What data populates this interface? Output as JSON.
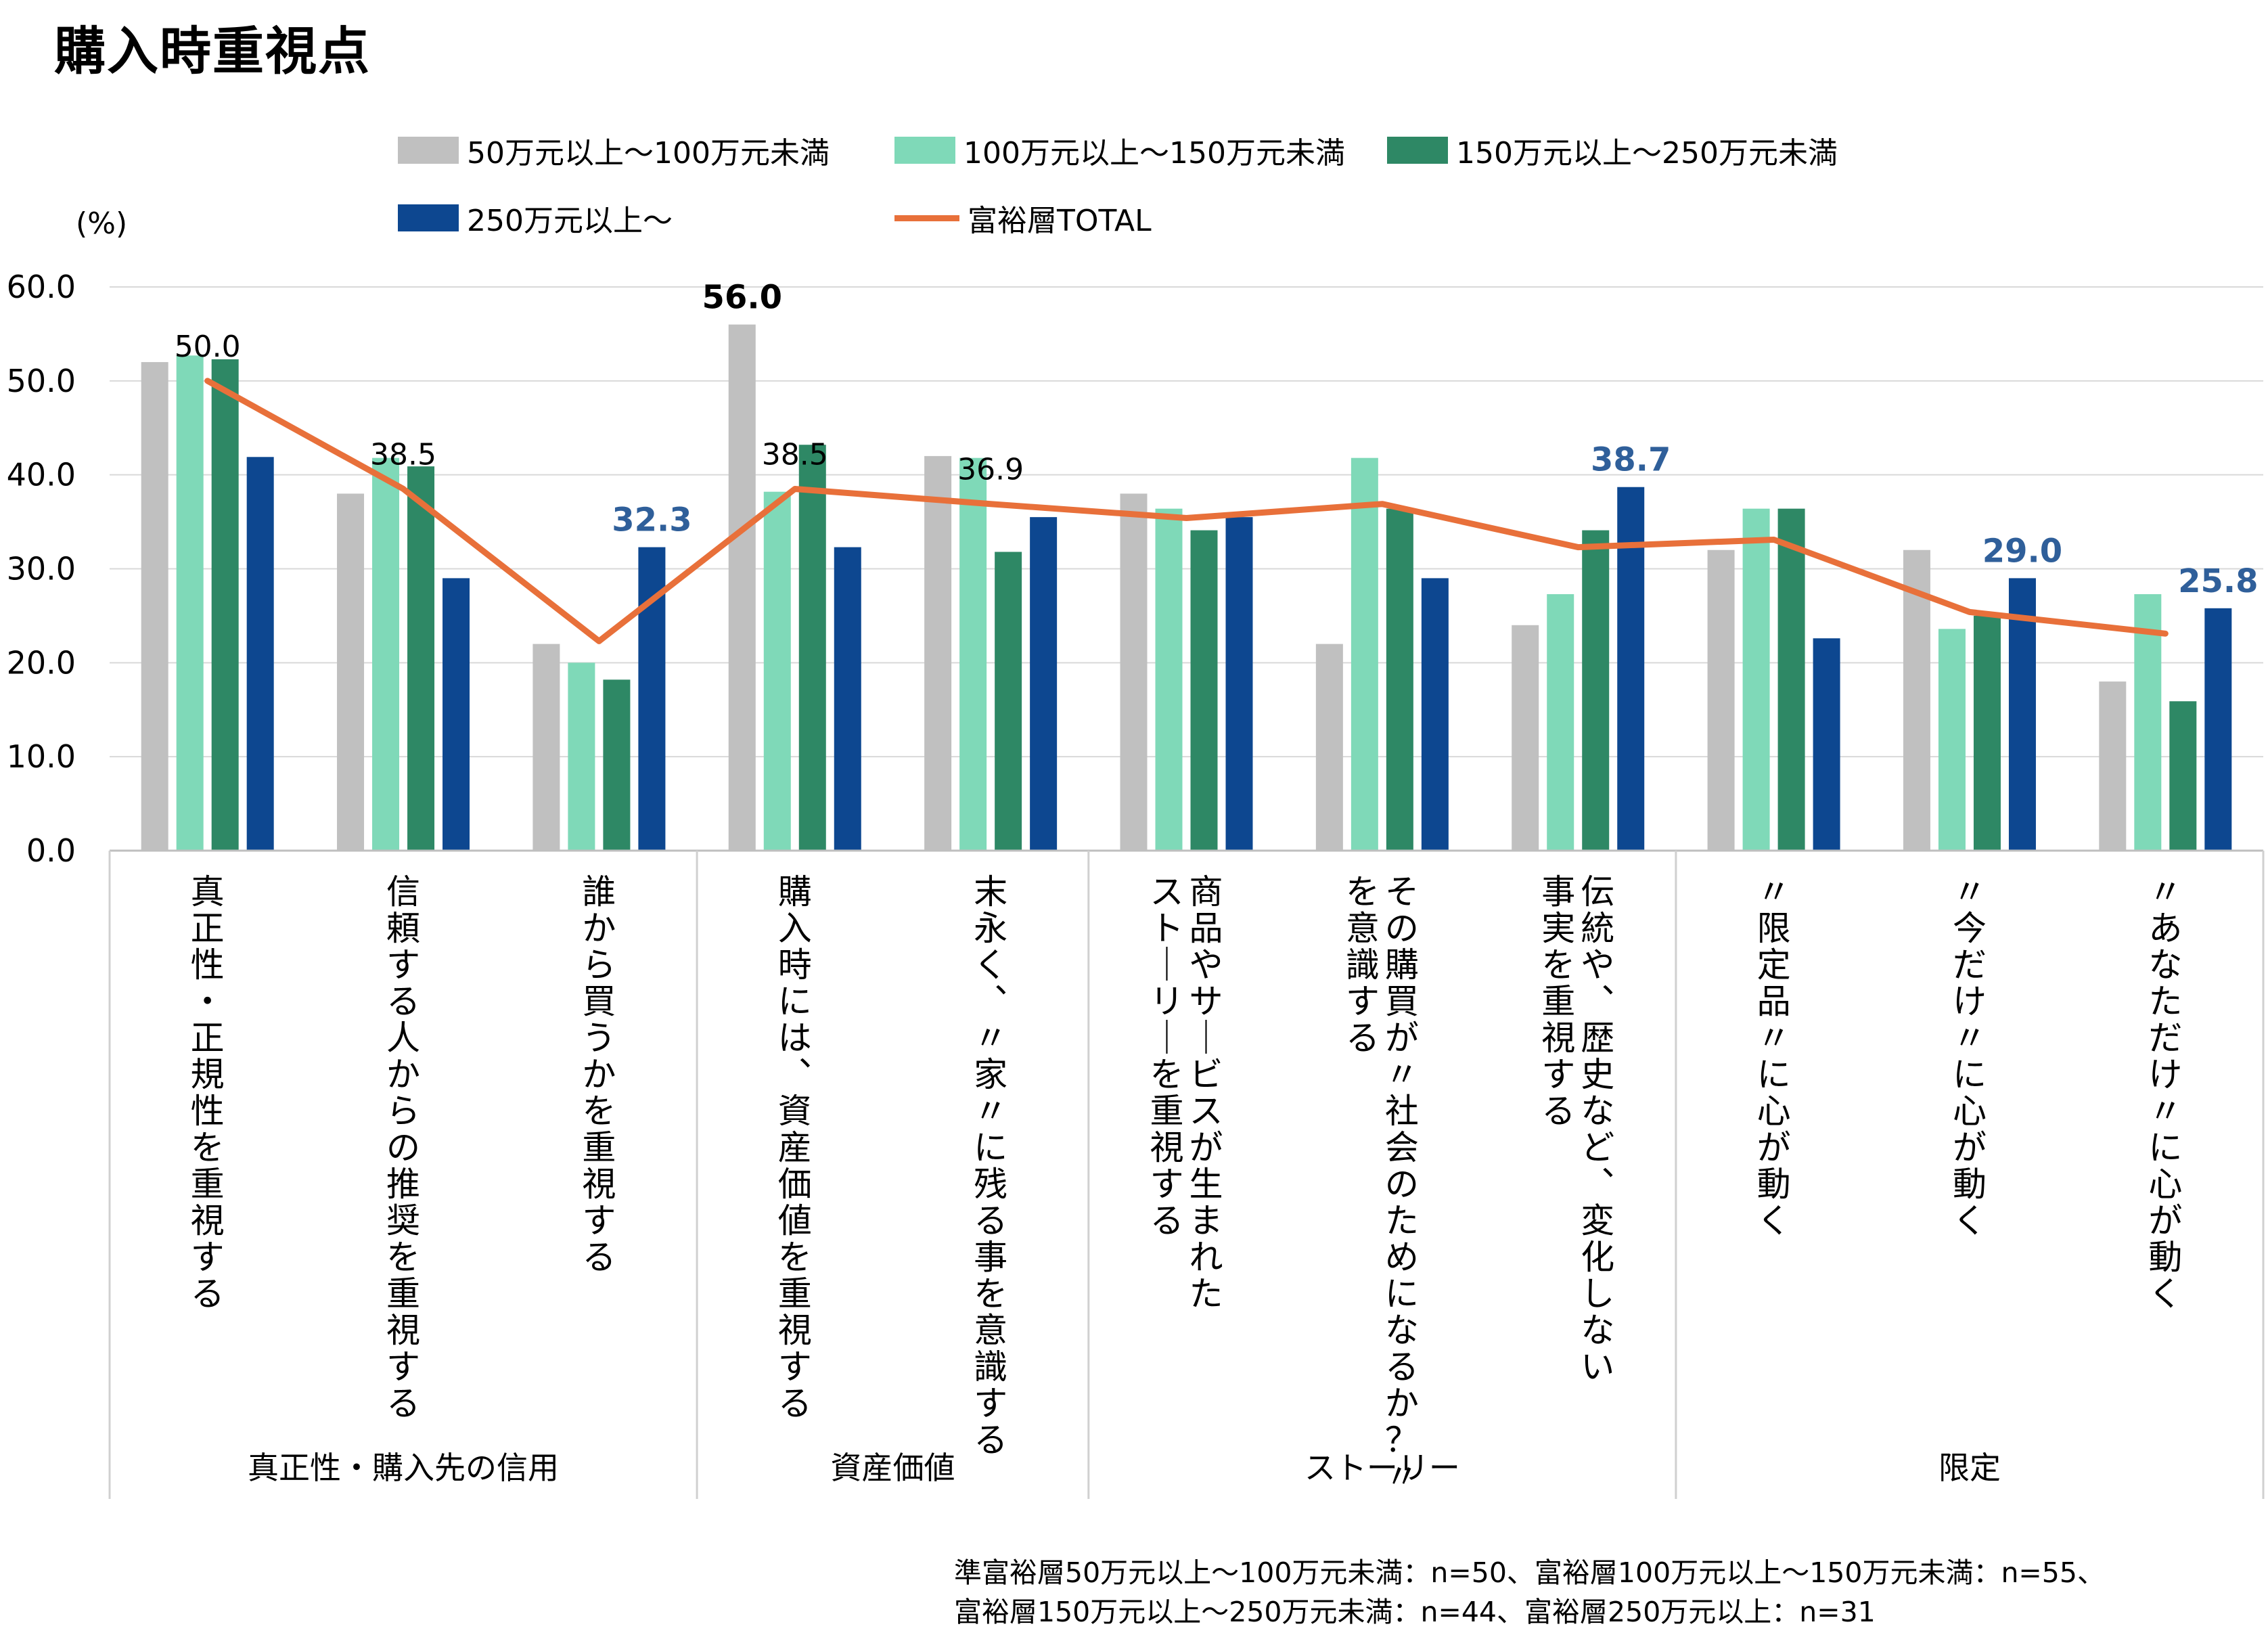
{
  "title": "購入時重視点",
  "unit": "(%)",
  "footnote": [
    "準富裕層50万元以上～100万元未満：n=50、富裕層100万元以上～150万元未満：n=55、",
    "富裕層150万元以上～250万元未満：n=44、富裕層250万元以上：n=31"
  ],
  "chart_data": {
    "type": "bar",
    "title": "購入時重視点",
    "ylabel": "(%)",
    "ylim": [
      0,
      60
    ],
    "yticks": [
      "0.0",
      "10.0",
      "20.0",
      "30.0",
      "40.0",
      "50.0",
      "60.0"
    ],
    "grid": true,
    "legend_position": "top",
    "categories": [
      "真正性・正規性を重視する",
      "信頼する人からの推奨を重視する",
      "誰から買うかを重視する",
      "購入時には、資産価値を重視する",
      "末永く、〃家〃に残る事を意識する",
      "商品やサービスが生まれたストーリーを重視する",
      "その購買が〃社会のためになるか？〃を意識する",
      "伝統や、歴史など、変化しない事実を重視する",
      "〃限定品〃に心が動く",
      "〃今だけ〃に心が動く",
      "〃あなただけ〃に心が動く"
    ],
    "category_lines": [
      [
        "真正性・正規性を重視する"
      ],
      [
        "信頼する人からの推奨を重視する"
      ],
      [
        "誰から買うかを重視する"
      ],
      [
        "購入時には、資産価値を重視する"
      ],
      [
        "末永く、〃家〃に残る事を意識する"
      ],
      [
        "商品やサービスが生まれた",
        "ストーリーを重視する"
      ],
      [
        "その購買が〃社会のためになるか？〃",
        "を意識する"
      ],
      [
        "伝統や、歴史など、変化しない",
        "事実を重視する"
      ],
      [
        "〃限定品〃に心が動く"
      ],
      [
        "〃今だけ〃に心が動く"
      ],
      [
        "〃あなただけ〃に心が動く"
      ]
    ],
    "groups": [
      {
        "label": "真正性・購入先の信用",
        "start": 0,
        "end": 2
      },
      {
        "label": "資産価値",
        "start": 3,
        "end": 4
      },
      {
        "label": "ストーリー",
        "start": 5,
        "end": 7
      },
      {
        "label": "限定",
        "start": 8,
        "end": 10
      }
    ],
    "series": [
      {
        "name": "50万元以上～100万元未満",
        "color": "#c0c0c0",
        "values": [
          52.0,
          38.0,
          22.0,
          56.0,
          42.0,
          38.0,
          22.0,
          24.0,
          32.0,
          32.0,
          18.0
        ]
      },
      {
        "name": "100万元以上～150万元未満",
        "color": "#7fd9b8",
        "values": [
          52.7,
          41.8,
          20.0,
          38.2,
          41.8,
          36.4,
          41.8,
          27.3,
          36.4,
          23.6,
          27.3
        ]
      },
      {
        "name": "150万元以上～250万元未満",
        "color": "#2e8865",
        "values": [
          52.3,
          40.9,
          18.2,
          43.2,
          31.8,
          34.1,
          36.4,
          34.1,
          36.4,
          25.0,
          15.9
        ]
      },
      {
        "name": "250万元以上～",
        "color": "#0d4790",
        "values": [
          41.9,
          29.0,
          32.3,
          32.3,
          35.5,
          35.5,
          29.0,
          38.7,
          22.6,
          29.0,
          25.8
        ]
      }
    ],
    "line": {
      "name": "富裕層TOTAL",
      "color": "#e8703a",
      "values": [
        50.0,
        38.5,
        22.3,
        38.5,
        36.9,
        35.4,
        36.9,
        32.3,
        33.1,
        25.4,
        23.1
      ]
    },
    "annotations": [
      {
        "category": 0,
        "series": "line",
        "text": "50.0",
        "style": "plain"
      },
      {
        "category": 1,
        "series": "line",
        "text": "38.5",
        "style": "plain"
      },
      {
        "category": 3,
        "series": "line",
        "text": "38.5",
        "style": "plain"
      },
      {
        "category": 4,
        "series": "line",
        "text": "36.9",
        "style": "plain"
      },
      {
        "category": 3,
        "series": 0,
        "text": "56.0",
        "style": "bold"
      },
      {
        "category": 2,
        "series": 3,
        "text": "32.3",
        "style": "blue"
      },
      {
        "category": 7,
        "series": 3,
        "text": "38.7",
        "style": "blue"
      },
      {
        "category": 9,
        "series": 3,
        "text": "29.0",
        "style": "blue"
      },
      {
        "category": 10,
        "series": 3,
        "text": "25.8",
        "style": "blue"
      }
    ]
  }
}
